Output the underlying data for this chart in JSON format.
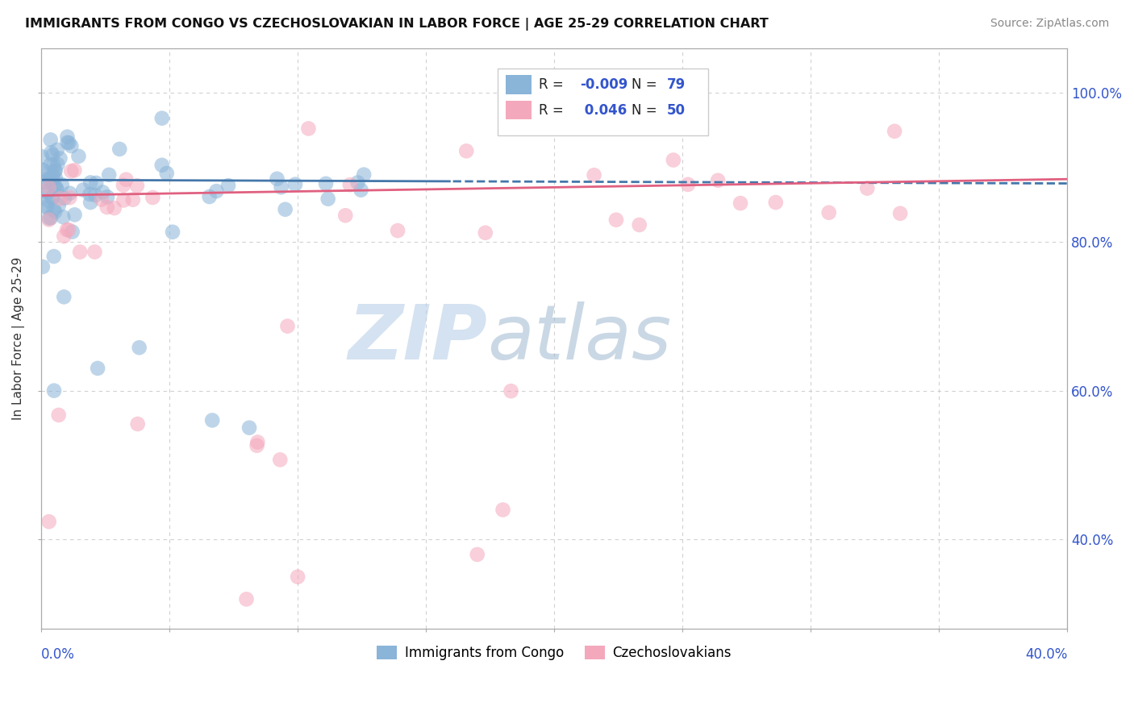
{
  "title": "IMMIGRANTS FROM CONGO VS CZECHOSLOVAKIAN IN LABOR FORCE | AGE 25-29 CORRELATION CHART",
  "source": "Source: ZipAtlas.com",
  "ylabel": "In Labor Force | Age 25-29",
  "xlim": [
    0.0,
    0.4
  ],
  "ylim": [
    0.28,
    1.06
  ],
  "yticks": [
    0.4,
    0.6,
    0.8,
    1.0
  ],
  "ytick_labels": [
    "40.0%",
    "60.0%",
    "80.0%",
    "100.0%"
  ],
  "background_color": "#ffffff",
  "grid_color": "#cccccc",
  "blue_color": "#8ab4d8",
  "pink_color": "#f4a8bc",
  "blue_line_color": "#4477aa",
  "pink_line_color": "#e06080",
  "r_value_color": "#3355cc",
  "watermark_zip_color": "#c5d8ee",
  "watermark_atlas_color": "#c5d8ee",
  "legend_entry1_label": "Immigrants from Congo",
  "legend_entry2_label": "Czechoslovakians",
  "legend_R1": "-0.009",
  "legend_N1": "79",
  "legend_R2": "0.046",
  "legend_N2": "50"
}
